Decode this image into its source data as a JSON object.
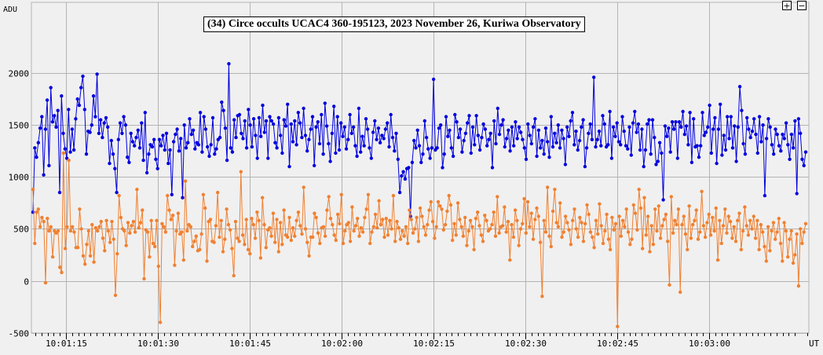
{
  "controls": {
    "zoom_in": "+",
    "zoom_out": "−"
  },
  "colors": {
    "target": "#0000dd",
    "comparison": "#f08030",
    "grid": "#b4b4b4",
    "background": "#f0f0f0"
  },
  "chart_data": {
    "type": "line",
    "title": "(34) Circe occults UCAC4 360-195123, 2023 November 26, Kuriwa Observatory",
    "ylabel": "ADU",
    "xlabel": "UT",
    "x_ticks": [
      "10:01:15",
      "10:01:30",
      "10:01:45",
      "10:02:00",
      "10:02:15",
      "10:02:30",
      "10:02:45",
      "10:03:00"
    ],
    "y_ticks": [
      2000,
      1500,
      1000,
      500,
      0,
      -500
    ],
    "ylim": [
      -500,
      2200
    ],
    "xlim_seconds": [
      9.7,
      137.0
    ],
    "x_start": "10:01:00",
    "grid": true,
    "series": [
      {
        "name": "",
        "color": "#0000dd",
        "marker": "dot",
        "values": [
          660,
          1280,
          1190,
          1330,
          1470,
          1580,
          1020,
          1460,
          1740,
          1110,
          1860,
          1530,
          1590,
          1480,
          1640,
          850,
          1780,
          1420,
          1270,
          1180,
          1650,
          1240,
          1460,
          1260,
          1560,
          1750,
          1690,
          1860,
          1970,
          1650,
          1220,
          1440,
          1430,
          1500,
          1780,
          1580,
          1990,
          1420,
          1550,
          1380,
          1520,
          1570,
          1480,
          1130,
          1350,
          1220,
          1080,
          850,
          1360,
          1520,
          1420,
          1580,
          1500,
          1190,
          1140,
          1420,
          1340,
          1300,
          1380,
          1450,
          1280,
          1520,
          1160,
          1620,
          1040,
          1220,
          1310,
          1290,
          1360,
          1170,
          1080,
          1360,
          1300,
          1400,
          1260,
          1420,
          1130,
          1260,
          830,
          1340,
          1410,
          1460,
          1250,
          1370,
          800,
          1500,
          1280,
          1330,
          1560,
          1410,
          1450,
          1270,
          1330,
          1310,
          1620,
          1240,
          1580,
          1460,
          1290,
          1200,
          1310,
          1570,
          1220,
          1270,
          1360,
          1380,
          1720,
          1640,
          1470,
          1160,
          2090,
          1280,
          1240,
          1550,
          1380,
          1590,
          1600,
          1420,
          1370,
          1540,
          1280,
          1650,
          1500,
          1290,
          1560,
          1400,
          1180,
          1570,
          1390,
          1690,
          1430,
          1540,
          1180,
          1580,
          1540,
          1510,
          1330,
          1280,
          1570,
          1400,
          1230,
          1550,
          1490,
          1700,
          1100,
          1510,
          1340,
          1540,
          1310,
          1620,
          1520,
          1380,
          1660,
          1400,
          1250,
          1360,
          1460,
          1580,
          1110,
          1480,
          1530,
          1320,
          1600,
          1220,
          1710,
          1490,
          1320,
          1150,
          1420,
          1680,
          1230,
          1580,
          1260,
          1520,
          1390,
          1480,
          1270,
          1360,
          1600,
          1420,
          1480,
          1300,
          1200,
          1660,
          1240,
          1390,
          1300,
          1560,
          1460,
          1280,
          1180,
          1430,
          1540,
          1360,
          1470,
          1330,
          1400,
          1370,
          1460,
          1520,
          1290,
          1600,
          1380,
          1250,
          1420,
          1170,
          850,
          1010,
          1050,
          980,
          1080,
          1090,
          620,
          1140,
          1350,
          1280,
          1450,
          1300,
          1140,
          1220,
          1540,
          1380,
          1270,
          1180,
          1280,
          1940,
          1260,
          1280,
          1470,
          1500,
          1090,
          1220,
          1580,
          1390,
          1450,
          1280,
          1200,
          1600,
          1530,
          1380,
          1460,
          1240,
          1350,
          1420,
          1520,
          1590,
          1230,
          1480,
          1310,
          1590,
          1400,
          1260,
          1380,
          1510,
          1460,
          1300,
          1360,
          1420,
          1090,
          1540,
          1320,
          1660,
          1410,
          1500,
          1550,
          1290,
          1370,
          1450,
          1250,
          1480,
          1300,
          1530,
          1370,
          1480,
          1430,
          1360,
          1280,
          1170,
          1510,
          1400,
          1320,
          1480,
          1560,
          1200,
          1450,
          1280,
          1350,
          1220,
          1470,
          1340,
          1190,
          1580,
          1290,
          1420,
          1330,
          1500,
          1280,
          1450,
          1370,
          1120,
          1480,
          1390,
          1540,
          1620,
          1310,
          1440,
          1260,
          1350,
          1480,
          1550,
          1100,
          1280,
          1420,
          1510,
          1360,
          1960,
          1290,
          1360,
          1440,
          1300,
          1590,
          1510,
          1290,
          1310,
          1630,
          1180,
          1480,
          1390,
          1520,
          1340,
          1310,
          1580,
          1440,
          1300,
          1270,
          1480,
          1210,
          1520,
          1630,
          1430,
          1510,
          1260,
          1460,
          1100,
          1260,
          1510,
          1550,
          1220,
          1550,
          1380,
          1120,
          1150,
          1330,
          1230,
          780,
          1490,
          1390,
          1470,
          1240,
          1530,
          1460,
          1530,
          1180,
          1530,
          1480,
          1630,
          1410,
          1490,
          1310,
          1620,
          1140,
          1560,
          1290,
          1300,
          1190,
          1300,
          1620,
          1400,
          1430,
          1480,
          1690,
          1230,
          1460,
          1570,
          1130,
          1460,
          1700,
          1210,
          1400,
          1260,
          1580,
          1370,
          1580,
          1280,
          1490,
          1150,
          1480,
          1870,
          1640,
          1320,
          1220,
          1570,
          1460,
          1380,
          1440,
          1560,
          1410,
          1230,
          1580,
          1340,
          1500,
          820,
          1370,
          1560,
          1480,
          1310,
          1220,
          1460,
          1410,
          1300,
          1250,
          1410,
          1370,
          1520,
          1310,
          1170,
          1410,
          1280,
          1540,
          840,
          1560,
          1420,
          1170,
          1110,
          1240
        ]
      },
      {
        "name": "",
        "color": "#f08030",
        "marker": "dot",
        "values": [
          880,
          360,
          660,
          690,
          520,
          610,
          570,
          -20,
          600,
          480,
          520,
          230,
          480,
          460,
          480,
          130,
          80,
          1230,
          310,
          520,
          1160,
          480,
          520,
          470,
          320,
          320,
          690,
          500,
          240,
          160,
          350,
          480,
          240,
          540,
          180,
          510,
          480,
          520,
          570,
          410,
          290,
          580,
          480,
          370,
          570,
          400,
          -140,
          260,
          820,
          610,
          500,
          480,
          340,
          560,
          460,
          530,
          570,
          470,
          880,
          510,
          560,
          680,
          20,
          490,
          470,
          230,
          580,
          360,
          330,
          580,
          140,
          -400,
          550,
          520,
          470,
          820,
          680,
          590,
          630,
          150,
          480,
          650,
          450,
          470,
          200,
          960,
          480,
          540,
          520,
          330,
          380,
          430,
          290,
          300,
          450,
          830,
          700,
          190,
          570,
          590,
          380,
          370,
          530,
          850,
          420,
          580,
          280,
          400,
          690,
          540,
          490,
          310,
          50,
          570,
          410,
          380,
          1050,
          440,
          350,
          590,
          300,
          260,
          600,
          540,
          410,
          660,
          580,
          220,
          800,
          540,
          320,
          490,
          510,
          430,
          650,
          370,
          590,
          280,
          560,
          350,
          680,
          440,
          420,
          610,
          390,
          510,
          430,
          580,
          660,
          530,
          450,
          900,
          500,
          370,
          240,
          420,
          420,
          650,
          610,
          460,
          360,
          510,
          520,
          430,
          680,
          810,
          600,
          540,
          440,
          390,
          640,
          550,
          830,
          360,
          480,
          540,
          560,
          380,
          710,
          480,
          530,
          600,
          430,
          510,
          470,
          610,
          690,
          830,
          360,
          470,
          520,
          640,
          510,
          770,
          540,
          590,
          420,
          600,
          440,
          580,
          500,
          820,
          380,
          570,
          510,
          400,
          480,
          430,
          520,
          360,
          680,
          590,
          460,
          500,
          610,
          380,
          700,
          620,
          520,
          440,
          540,
          680,
          760,
          570,
          410,
          520,
          760,
          720,
          690,
          490,
          540,
          670,
          820,
          730,
          390,
          550,
          440,
          750,
          590,
          520,
          430,
          610,
          340,
          480,
          580,
          520,
          300,
          600,
          660,
          530,
          440,
          380,
          630,
          580,
          480,
          500,
          540,
          660,
          430,
          810,
          460,
          520,
          530,
          710,
          470,
          570,
          200,
          540,
          420,
          680,
          580,
          340,
          500,
          550,
          790,
          460,
          760,
          520,
          650,
          400,
          590,
          700,
          620,
          370,
          -150,
          580,
          470,
          900,
          430,
          330,
          670,
          880,
          560,
          520,
          750,
          420,
          470,
          620,
          560,
          490,
          350,
          580,
          690,
          500,
          420,
          610,
          560,
          380,
          550,
          730,
          640,
          470,
          420,
          320,
          580,
          450,
          740,
          530,
          360,
          480,
          640,
          400,
          300,
          610,
          490,
          550,
          -440,
          620,
          430,
          580,
          520,
          690,
          470,
          350,
          400,
          730,
          650,
          490,
          880,
          700,
          310,
          800,
          440,
          620,
          280,
          530,
          350,
          690,
          480,
          720,
          410,
          530,
          590,
          640,
          380,
          -40,
          810,
          460,
          580,
          540,
          690,
          -110,
          540,
          620,
          450,
          300,
          720,
          410,
          540,
          580,
          680,
          400,
          470,
          860,
          530,
          420,
          560,
          640,
          440,
          610,
          480,
          700,
          200,
          580,
          360,
          530,
          690,
          460,
          620,
          570,
          410,
          520,
          380,
          580,
          650,
          300,
          480,
          710,
          530,
          440,
          580,
          500,
          620,
          410,
          580,
          300,
          540,
          470,
          330,
          190,
          520,
          290,
          480,
          560,
          400,
          470,
          600,
          360,
          190,
          560,
          480,
          230,
          400,
          480,
          170,
          250,
          450,
          -50,
          500,
          360,
          470,
          550
        ]
      }
    ]
  }
}
